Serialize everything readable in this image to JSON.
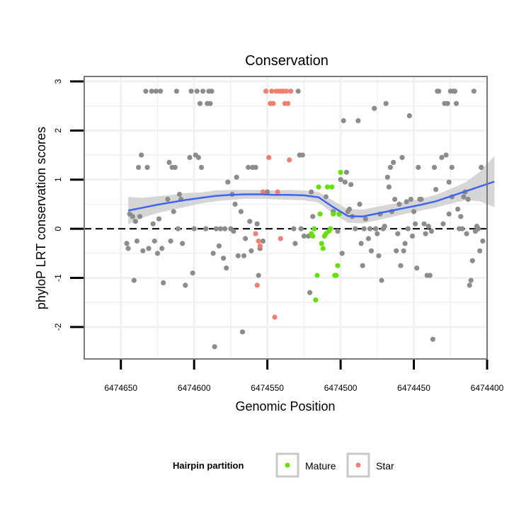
{
  "chart_data": {
    "type": "scatter",
    "title": "Conservation",
    "xlabel": "Genomic Position",
    "ylabel": "phyloP LRT conservation scores",
    "xlim": [
      6474400,
      6474675
    ],
    "x_reversed": true,
    "ylim": [
      -2.65,
      3.1
    ],
    "x_ticks": [
      6474650,
      6474600,
      6474550,
      6474500,
      6474450,
      6474400
    ],
    "y_ticks": [
      -2,
      -1,
      0,
      1,
      2,
      3
    ],
    "reference_line": {
      "y": 0,
      "style": "dashed"
    },
    "colors": {
      "other": "#8c8c8c",
      "Mature": "#66e00a",
      "Star": "#ef7f6f",
      "smooth": "#3d66f0",
      "band": "#cfcfcf",
      "panel_border": "#7a7a7a",
      "grid": "#f1f1f1"
    },
    "legend": {
      "title": "Hairpin partition",
      "entries": [
        {
          "label": "Mature",
          "color": "#66e00a"
        },
        {
          "label": "Star",
          "color": "#ef7f6f"
        }
      ]
    },
    "series": [
      {
        "name": "other",
        "points": [
          [
            6474646,
            -0.3
          ],
          [
            6474645,
            -0.4
          ],
          [
            6474644,
            0.3
          ],
          [
            6474642,
            0.25
          ],
          [
            6474641,
            -1.05
          ],
          [
            6474640,
            0.15
          ],
          [
            6474639,
            -0.25
          ],
          [
            6474638,
            1.25
          ],
          [
            6474637,
            0.25
          ],
          [
            6474636,
            1.5
          ],
          [
            6474635,
            -0.45
          ],
          [
            6474633,
            2.8
          ],
          [
            6474632,
            1.25
          ],
          [
            6474631,
            -0.4
          ],
          [
            6474629,
            2.8
          ],
          [
            6474628,
            0.1
          ],
          [
            6474627,
            -0.25
          ],
          [
            6474626,
            2.8
          ],
          [
            6474625,
            -0.5
          ],
          [
            6474624,
            0.2
          ],
          [
            6474623,
            2.8
          ],
          [
            6474622,
            -0.4
          ],
          [
            6474621,
            -1.1
          ],
          [
            6474618,
            0.6
          ],
          [
            6474617,
            1.35
          ],
          [
            6474616,
            -0.25
          ],
          [
            6474615,
            1.25
          ],
          [
            6474614,
            0.35
          ],
          [
            6474613,
            1.25
          ],
          [
            6474612,
            2.8
          ],
          [
            6474611,
            0.0
          ],
          [
            6474610,
            0.7
          ],
          [
            6474609,
            0.6
          ],
          [
            6474608,
            -0.3
          ],
          [
            6474606,
            -1.15
          ],
          [
            6474603,
            1.45
          ],
          [
            6474602,
            2.8
          ],
          [
            6474601,
            -0.9
          ],
          [
            6474600,
            0.0
          ],
          [
            6474599,
            1.5
          ],
          [
            6474598,
            2.8
          ],
          [
            6474597,
            1.45
          ],
          [
            6474596,
            2.55
          ],
          [
            6474595,
            1.25
          ],
          [
            6474594,
            2.8
          ],
          [
            6474592,
            0.0
          ],
          [
            6474591,
            2.55
          ],
          [
            6474590,
            2.8
          ],
          [
            6474589,
            2.55
          ],
          [
            6474588,
            2.8
          ],
          [
            6474587,
            -0.5
          ],
          [
            6474586,
            -2.4
          ],
          [
            6474585,
            0.0
          ],
          [
            6474583,
            -0.35
          ],
          [
            6474582,
            0.0
          ],
          [
            6474580,
            -0.6
          ],
          [
            6474579,
            0.0
          ],
          [
            6474578,
            -0.8
          ],
          [
            6474577,
            0.95
          ],
          [
            6474575,
            0.0
          ],
          [
            6474574,
            0.7
          ],
          [
            6474573,
            -0.05
          ],
          [
            6474572,
            0.5
          ],
          [
            6474571,
            1.05
          ],
          [
            6474570,
            -0.55
          ],
          [
            6474568,
            0.35
          ],
          [
            6474567,
            -2.1
          ],
          [
            6474566,
            -0.55
          ],
          [
            6474565,
            -0.2
          ],
          [
            6474563,
            1.25
          ],
          [
            6474562,
            0.15
          ],
          [
            6474561,
            -0.45
          ],
          [
            6474560,
            1.25
          ],
          [
            6474558,
            1.25
          ],
          [
            6474557,
            0.1
          ],
          [
            6474556,
            -0.95
          ],
          [
            6474555,
            -0.4
          ],
          [
            6474553,
            -0.25
          ],
          [
            6474550,
            0.75
          ],
          [
            6474532,
            0.0
          ],
          [
            6474531,
            -0.3
          ],
          [
            6474529,
            2.8
          ],
          [
            6474528,
            1.5
          ],
          [
            6474527,
            0.0
          ],
          [
            6474526,
            1.5
          ],
          [
            6474525,
            -0.15
          ],
          [
            6474522,
            -0.15
          ],
          [
            6474521,
            -1.3
          ],
          [
            6474520,
            0.75
          ],
          [
            6474519,
            0.25
          ],
          [
            6474510,
            0.65
          ],
          [
            6474505,
            0.35
          ],
          [
            6474502,
            -0.05
          ],
          [
            6474500,
            1.0
          ],
          [
            6474499,
            -0.5
          ],
          [
            6474498,
            2.2
          ],
          [
            6474497,
            0.95
          ],
          [
            6474496,
            1.15
          ],
          [
            6474495,
            0.35
          ],
          [
            6474494,
            0.4
          ],
          [
            6474493,
            0.9
          ],
          [
            6474492,
            0.25
          ],
          [
            6474490,
            0.0
          ],
          [
            6474488,
            2.2
          ],
          [
            6474487,
            0.5
          ],
          [
            6474486,
            -0.3
          ],
          [
            6474485,
            -0.75
          ],
          [
            6474484,
            0.0
          ],
          [
            6474483,
            0.2
          ],
          [
            6474481,
            -0.2
          ],
          [
            6474480,
            0.0
          ],
          [
            6474479,
            -0.45
          ],
          [
            6474477,
            2.45
          ],
          [
            6474476,
            0.0
          ],
          [
            6474475,
            -0.1
          ],
          [
            6474474,
            -0.55
          ],
          [
            6474473,
            0.3
          ],
          [
            6474472,
            -1.05
          ],
          [
            6474471,
            0.0
          ],
          [
            6474470,
            0.05
          ],
          [
            6474469,
            2.55
          ],
          [
            6474468,
            1.05
          ],
          [
            6474467,
            0.85
          ],
          [
            6474466,
            1.25
          ],
          [
            6474465,
            0.35
          ],
          [
            6474464,
            1.35
          ],
          [
            6474463,
            0.6
          ],
          [
            6474462,
            -0.45
          ],
          [
            6474461,
            -0.1
          ],
          [
            6474460,
            0.5
          ],
          [
            6474459,
            -0.75
          ],
          [
            6474458,
            1.45
          ],
          [
            6474457,
            -0.45
          ],
          [
            6474456,
            -0.3
          ],
          [
            6474455,
            0.55
          ],
          [
            6474454,
            0.0
          ],
          [
            6474453,
            2.3
          ],
          [
            6474452,
            0.6
          ],
          [
            6474451,
            -0.15
          ],
          [
            6474450,
            0.35
          ],
          [
            6474449,
            0.1
          ],
          [
            6474448,
            -0.8
          ],
          [
            6474447,
            1.25
          ],
          [
            6474446,
            0.6
          ],
          [
            6474445,
            0.6
          ],
          [
            6474443,
            0.1
          ],
          [
            6474442,
            -0.1
          ],
          [
            6474441,
            -0.95
          ],
          [
            6474440,
            0.05
          ],
          [
            6474439,
            -0.95
          ],
          [
            6474438,
            -0.05
          ],
          [
            6474437,
            -2.25
          ],
          [
            6474436,
            1.25
          ],
          [
            6474435,
            0.8
          ],
          [
            6474434,
            2.8
          ],
          [
            6474433,
            2.8
          ],
          [
            6474431,
            1.45
          ],
          [
            6474430,
            0.1
          ],
          [
            6474429,
            2.55
          ],
          [
            6474428,
            1.5
          ],
          [
            6474427,
            2.55
          ],
          [
            6474426,
            0.95
          ],
          [
            6474425,
            2.8
          ],
          [
            6474424,
            1.25
          ],
          [
            6474423,
            2.8
          ],
          [
            6474422,
            2.8
          ],
          [
            6474421,
            2.55
          ],
          [
            6474420,
            0.4
          ],
          [
            6474419,
            0.0
          ],
          [
            6474418,
            0.25
          ],
          [
            6474417,
            0.0
          ],
          [
            6474416,
            0.65
          ],
          [
            6474415,
            0.75
          ],
          [
            6474414,
            -0.1
          ],
          [
            6474413,
            0.6
          ],
          [
            6474412,
            -1.15
          ],
          [
            6474411,
            -1.05
          ],
          [
            6474410,
            -0.65
          ],
          [
            6474409,
            2.8
          ],
          [
            6474408,
            -0.05
          ],
          [
            6474407,
            0.05
          ],
          [
            6474406,
            0.0
          ],
          [
            6474405,
            -0.45
          ],
          [
            6474404,
            1.25
          ],
          [
            6474403,
            -0.25
          ],
          [
            6474424,
            0.65
          ],
          [
            6474426,
            0.3
          ]
        ]
      },
      {
        "name": "Mature",
        "points": [
          [
            6474520,
            -0.1
          ],
          [
            6474519,
            -0.15
          ],
          [
            6474518,
            0.0
          ],
          [
            6474517,
            -1.45
          ],
          [
            6474516,
            -0.95
          ],
          [
            6474515,
            0.85
          ],
          [
            6474514,
            0.3
          ],
          [
            6474513,
            -0.3
          ],
          [
            6474512,
            -0.4
          ],
          [
            6474511,
            -0.15
          ],
          [
            6474510,
            -0.1
          ],
          [
            6474509,
            0.85
          ],
          [
            6474508,
            -0.05
          ],
          [
            6474507,
            0.0
          ],
          [
            6474506,
            0.85
          ],
          [
            6474505,
            0.3
          ],
          [
            6474504,
            -0.95
          ],
          [
            6474503,
            -0.95
          ],
          [
            6474502,
            -0.75
          ],
          [
            6474501,
            0.3
          ],
          [
            6474500,
            1.15
          ]
        ]
      },
      {
        "name": "Star",
        "points": [
          [
            6474553,
            0.75
          ],
          [
            6474551,
            2.8
          ],
          [
            6474549,
            1.45
          ],
          [
            6474548,
            2.55
          ],
          [
            6474547,
            2.8
          ],
          [
            6474546,
            2.55
          ],
          [
            6474545,
            -1.8
          ],
          [
            6474544,
            2.8
          ],
          [
            6474543,
            0.75
          ],
          [
            6474542,
            2.8
          ],
          [
            6474541,
            -0.2
          ],
          [
            6474540,
            2.8
          ],
          [
            6474539,
            2.8
          ],
          [
            6474538,
            2.55
          ],
          [
            6474537,
            2.8
          ],
          [
            6474536,
            2.55
          ],
          [
            6474535,
            1.4
          ],
          [
            6474534,
            2.8
          ],
          [
            6474555,
            -0.35
          ],
          [
            6474556,
            -0.25
          ],
          [
            6474557,
            -1.15
          ],
          [
            6474558,
            -0.1
          ]
        ]
      }
    ],
    "smooth": {
      "method": "loess",
      "x": [
        6474645,
        6474635,
        6474625,
        6474615,
        6474605,
        6474595,
        6474585,
        6474575,
        6474565,
        6474555,
        6474545,
        6474535,
        6474525,
        6474515,
        6474505,
        6474495,
        6474485,
        6474475,
        6474465,
        6474455,
        6474445,
        6474435,
        6474425,
        6474415,
        6474405,
        6474395
      ],
      "y": [
        0.37,
        0.43,
        0.49,
        0.54,
        0.59,
        0.63,
        0.67,
        0.69,
        0.7,
        0.7,
        0.69,
        0.69,
        0.68,
        0.64,
        0.44,
        0.26,
        0.25,
        0.31,
        0.37,
        0.43,
        0.49,
        0.56,
        0.66,
        0.76,
        0.86,
        0.96
      ],
      "lower": [
        0.09,
        0.23,
        0.32,
        0.39,
        0.45,
        0.52,
        0.56,
        0.59,
        0.61,
        0.61,
        0.6,
        0.59,
        0.58,
        0.53,
        0.31,
        0.12,
        0.11,
        0.17,
        0.24,
        0.31,
        0.37,
        0.43,
        0.51,
        0.58,
        0.56,
        0.44
      ],
      "upper": [
        0.65,
        0.63,
        0.66,
        0.69,
        0.73,
        0.74,
        0.78,
        0.79,
        0.79,
        0.79,
        0.78,
        0.79,
        0.78,
        0.75,
        0.57,
        0.4,
        0.39,
        0.45,
        0.5,
        0.55,
        0.61,
        0.69,
        0.81,
        0.94,
        1.16,
        1.48
      ]
    }
  }
}
